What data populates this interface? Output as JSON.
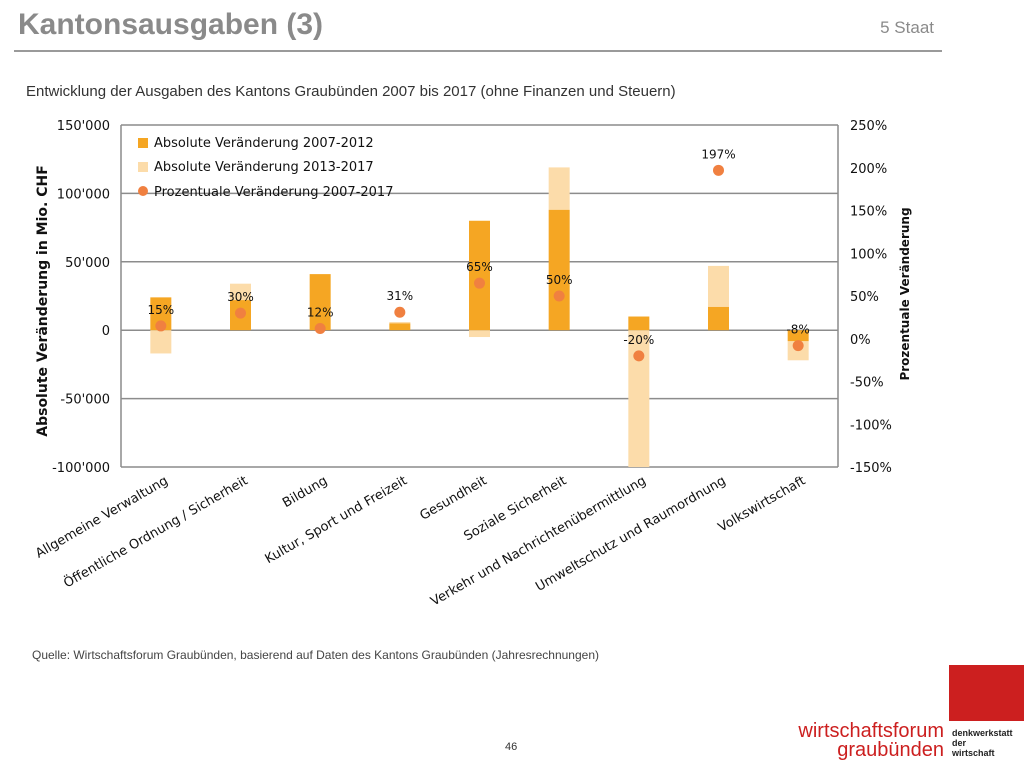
{
  "slide": {
    "title": "Kantonsausgaben (3)",
    "section": "5 Staat",
    "subtitle": "Entwicklung der Ausgaben des Kantons Graubünden 2007 bis 2017 (ohne Finanzen und Steuern)",
    "source": "Quelle: Wirtschaftsforum Graubünden, basierend auf Daten des Kantons Graubünden (Jahresrechnungen)",
    "page_number": "46",
    "logo_line1": "wirtschaftsforum",
    "logo_line2": "graubünden",
    "logo_side": [
      "denkwerkstatt",
      "der",
      "wirtschaft"
    ],
    "brand_color": "#cc1f1f"
  },
  "chart_data": {
    "type": "bar",
    "categories": [
      "Allgemeine Verwaltung",
      "Öffentliche Ordnung / Sicherheit",
      "Bildung",
      "Kultur, Sport und Freizeit",
      "Gesundheit",
      "Soziale Sicherheit",
      "Verkehr und Nachrichtenübermittlung",
      "Umweltschutz und Raumordnung",
      "Volkswirtschaft"
    ],
    "series": [
      {
        "name": "Absolute Veränderung 2007-2012",
        "axis": "left",
        "kind": "bar",
        "color": "#f5a623",
        "values": [
          24000,
          22000,
          41000,
          5000,
          80000,
          88000,
          10000,
          17000,
          -8000
        ]
      },
      {
        "name": "Absolute Veränderung 2013-2017",
        "axis": "left",
        "kind": "bar-stacked",
        "color": "#fcdcaa",
        "values": [
          -17000,
          12000,
          0,
          1000,
          -5000,
          31000,
          -100000,
          30000,
          -14000
        ]
      },
      {
        "name": "Prozentuale Veränderung 2007-2017",
        "axis": "right",
        "kind": "point",
        "color": "#f08040",
        "values": [
          15,
          30,
          12,
          31,
          65,
          50,
          -20,
          197,
          -8
        ],
        "labels": [
          "15%",
          "30%",
          "12%",
          "31%",
          "65%",
          "50%",
          "-20%",
          "197%",
          "-8%"
        ]
      }
    ],
    "ylabel": "Absolute Veränderung in Mio. CHF",
    "y2label": "Prozentuale Veränderung",
    "ylim": [
      -100000,
      150000
    ],
    "y2lim": [
      -150,
      250
    ],
    "yticks": [
      {
        "value": 150000,
        "label": "150'000"
      },
      {
        "value": 100000,
        "label": "100'000"
      },
      {
        "value": 50000,
        "label": "50'000"
      },
      {
        "value": 0,
        "label": "0"
      },
      {
        "value": -50000,
        "label": "-50'000"
      },
      {
        "value": -100000,
        "label": "-100'000"
      }
    ],
    "y2ticks": [
      {
        "value": 250,
        "label": "250%"
      },
      {
        "value": 200,
        "label": "200%"
      },
      {
        "value": 150,
        "label": "150%"
      },
      {
        "value": 100,
        "label": "100%"
      },
      {
        "value": 50,
        "label": "50%"
      },
      {
        "value": 0,
        "label": "0%"
      },
      {
        "value": -50,
        "label": "-50%"
      },
      {
        "value": -100,
        "label": "-100%"
      },
      {
        "value": -150,
        "label": "-150%"
      }
    ],
    "grid": true,
    "legend": "top-left"
  }
}
